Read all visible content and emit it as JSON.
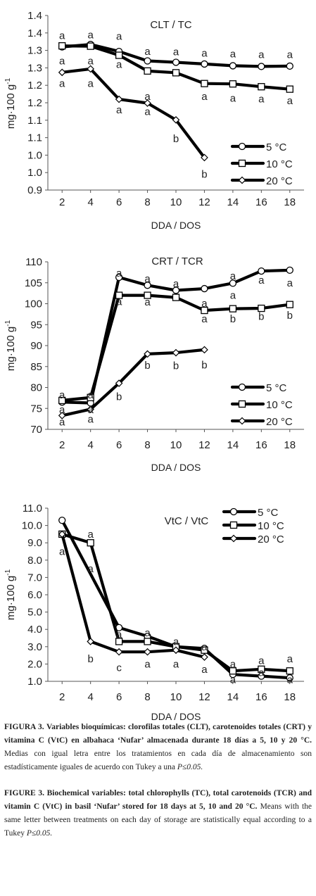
{
  "chart_data": [
    {
      "type": "line",
      "title": "CLT / TC",
      "xlabel": "DDA / DOS",
      "ylabel": "mg·100 g-1",
      "ylabel_main": "mg·100 g",
      "ylabel_sup": "-1",
      "x": [
        2,
        4,
        6,
        8,
        10,
        12,
        14,
        16,
        18
      ],
      "ylim": [
        0.9,
        1.4
      ],
      "yticks": [
        "0.9",
        "1.0",
        "1.0",
        "1.1",
        "1.1",
        "1.2",
        "1.2",
        "1.3",
        "1.3",
        "1.4",
        "1.4"
      ],
      "legend_position": "lower-right",
      "series": [
        {
          "name": "5 °C",
          "marker": "circle",
          "values": [
            1.31,
            1.317,
            1.297,
            1.27,
            1.266,
            1.261,
            1.256,
            1.254,
            1.255
          ]
        },
        {
          "name": "10 °C",
          "marker": "square",
          "values": [
            1.313,
            1.312,
            1.286,
            1.241,
            1.236,
            1.205,
            1.204,
            1.196,
            1.189
          ]
        },
        {
          "name": "20 °C",
          "marker": "diamond",
          "values": [
            1.237,
            1.247,
            1.16,
            1.149,
            1.101,
            0.993,
            null,
            null,
            null
          ]
        }
      ],
      "letters": [
        {
          "x": 2,
          "y": 1.343,
          "t": "a"
        },
        {
          "x": 4,
          "y": 1.345,
          "t": "a"
        },
        {
          "x": 6,
          "y": 1.341,
          "t": "a"
        },
        {
          "x": 8,
          "y": 1.297,
          "t": "a"
        },
        {
          "x": 10,
          "y": 1.296,
          "t": "a"
        },
        {
          "x": 12,
          "y": 1.292,
          "t": "a"
        },
        {
          "x": 14,
          "y": 1.29,
          "t": "a"
        },
        {
          "x": 16,
          "y": 1.288,
          "t": "a"
        },
        {
          "x": 18,
          "y": 1.288,
          "t": "a"
        },
        {
          "x": 2,
          "y": 1.27,
          "t": "a"
        },
        {
          "x": 4,
          "y": 1.27,
          "t": "a"
        },
        {
          "x": 6,
          "y": 1.26,
          "t": "a"
        },
        {
          "x": 2,
          "y": 1.205,
          "t": "a"
        },
        {
          "x": 4,
          "y": 1.205,
          "t": "a"
        },
        {
          "x": 6,
          "y": 1.13,
          "t": "a"
        },
        {
          "x": 8,
          "y": 1.125,
          "t": "a"
        },
        {
          "x": 10,
          "y": 1.047,
          "t": "b"
        },
        {
          "x": 8,
          "y": 1.168,
          "t": "a"
        },
        {
          "x": 12,
          "y": 1.168,
          "t": "a"
        },
        {
          "x": 14,
          "y": 1.163,
          "t": "a"
        },
        {
          "x": 16,
          "y": 1.161,
          "t": "a"
        },
        {
          "x": 18,
          "y": 1.156,
          "t": "a"
        },
        {
          "x": 12,
          "y": 0.945,
          "t": "b"
        }
      ]
    },
    {
      "type": "line",
      "title": "CRT / TCR",
      "xlabel": "DDA / DOS",
      "ylabel": "mg·100 g-1",
      "ylabel_main": "mg·100 g",
      "ylabel_sup": "-1",
      "x": [
        2,
        4,
        6,
        8,
        10,
        12,
        14,
        16,
        18
      ],
      "ylim": [
        70,
        110
      ],
      "yticks": [
        "70",
        "75",
        "80",
        "85",
        "90",
        "95",
        "100",
        "105",
        "110"
      ],
      "legend_position": "lower-right",
      "series": [
        {
          "name": "5 °C",
          "marker": "circle",
          "values": [
            76.5,
            76.3,
            106.3,
            104.4,
            103.2,
            103.6,
            104.9,
            107.8,
            108.0
          ]
        },
        {
          "name": "10 °C",
          "marker": "square",
          "values": [
            76.9,
            77.6,
            102.0,
            102.0,
            101.5,
            98.4,
            98.8,
            98.9,
            99.8
          ]
        },
        {
          "name": "20 °C",
          "marker": "diamond",
          "values": [
            73.3,
            74.8,
            81.0,
            88.0,
            88.3,
            89.0,
            null,
            null,
            null
          ]
        }
      ],
      "letters": [
        {
          "x": 2,
          "y": 78.2,
          "t": "a"
        },
        {
          "x": 4,
          "y": 78.2,
          "t": "a"
        },
        {
          "x": 6,
          "y": 107.3,
          "t": "a"
        },
        {
          "x": 8,
          "y": 106.0,
          "t": "a"
        },
        {
          "x": 10,
          "y": 104.8,
          "t": "a"
        },
        {
          "x": 14,
          "y": 106.6,
          "t": "a"
        },
        {
          "x": 16,
          "y": 105.6,
          "t": "a"
        },
        {
          "x": 18,
          "y": 105.0,
          "t": "a"
        },
        {
          "x": 6,
          "y": 100.5,
          "t": "a"
        },
        {
          "x": 8,
          "y": 100.4,
          "t": "a"
        },
        {
          "x": 12,
          "y": 100.1,
          "t": "a"
        },
        {
          "x": 14,
          "y": 102.0,
          "t": "a"
        },
        {
          "x": 12,
          "y": 96.4,
          "t": "a"
        },
        {
          "x": 14,
          "y": 96.4,
          "t": "b"
        },
        {
          "x": 16,
          "y": 97.0,
          "t": "b"
        },
        {
          "x": 18,
          "y": 97.2,
          "t": "b"
        },
        {
          "x": 2,
          "y": 74.7,
          "t": "a"
        },
        {
          "x": 4,
          "y": 74.7,
          "t": "a"
        },
        {
          "x": 2,
          "y": 71.8,
          "t": "a"
        },
        {
          "x": 4,
          "y": 72.4,
          "t": "a"
        },
        {
          "x": 6,
          "y": 77.8,
          "t": "b"
        },
        {
          "x": 8,
          "y": 85.3,
          "t": "b"
        },
        {
          "x": 10,
          "y": 85.2,
          "t": "b"
        },
        {
          "x": 12,
          "y": 85.4,
          "t": "b"
        }
      ]
    },
    {
      "type": "line",
      "title": "VtC / VtC",
      "xlabel": "DDA / DOS",
      "ylabel": "mg·100 g-1",
      "ylabel_main": "mg·100 g",
      "ylabel_sup": "-1",
      "x": [
        2,
        4,
        6,
        8,
        10,
        12,
        14,
        16,
        18
      ],
      "ylim": [
        1.0,
        11.0
      ],
      "yticks": [
        "1.0",
        "2.0",
        "3.0",
        "4.0",
        "5.0",
        "6.0",
        "7.0",
        "8.0",
        "9.0",
        "10.0",
        "11.0"
      ],
      "legend_position": "top-right",
      "series": [
        {
          "name": "5 °C",
          "marker": "circle",
          "values": [
            10.3,
            null,
            4.1,
            3.6,
            3.0,
            2.9,
            1.4,
            1.3,
            1.2
          ]
        },
        {
          "name": "10 °C",
          "marker": "square",
          "values": [
            9.5,
            9.0,
            3.3,
            3.3,
            3.0,
            2.8,
            1.6,
            1.7,
            1.6
          ]
        },
        {
          "name": "20 °C",
          "marker": "diamond",
          "values": [
            9.5,
            3.3,
            2.7,
            2.7,
            2.8,
            2.4,
            null,
            null,
            null
          ]
        }
      ],
      "letters": [
        {
          "x": 2,
          "y": 8.5,
          "t": "a"
        },
        {
          "x": 4,
          "y": 9.5,
          "t": "a"
        },
        {
          "x": 4,
          "y": 7.5,
          "t": "a"
        },
        {
          "x": 4,
          "y": 2.3,
          "t": "b"
        },
        {
          "x": 6,
          "y": 3.7,
          "t": "a"
        },
        {
          "x": 6,
          "y": 1.8,
          "t": "c"
        },
        {
          "x": 8,
          "y": 3.8,
          "t": "a"
        },
        {
          "x": 8,
          "y": 2.0,
          "t": "a"
        },
        {
          "x": 10,
          "y": 3.3,
          "t": "a"
        },
        {
          "x": 10,
          "y": 2.0,
          "t": "a"
        },
        {
          "x": 12,
          "y": 3.0,
          "t": "a"
        },
        {
          "x": 12,
          "y": 1.7,
          "t": "a"
        },
        {
          "x": 14,
          "y": 2.0,
          "t": "a"
        },
        {
          "x": 14,
          "y": 1.1,
          "t": "a"
        },
        {
          "x": 16,
          "y": 2.2,
          "t": "a"
        },
        {
          "x": 16,
          "y": 1.5,
          "t": "a"
        },
        {
          "x": 18,
          "y": 2.3,
          "t": "a"
        },
        {
          "x": 18,
          "y": 1.1,
          "t": "a"
        }
      ]
    }
  ],
  "captions": {
    "es": {
      "label": "FIGURA 3.",
      "bold": "Variables bioquímicas: clorofilas totales (CLT), carotenoides totales (CRT) y vitamina C (VtC) en albahaca ‘Nufar’ almacenada durante 18 días a 5, 10 y 20 °C.",
      "text": " Medias con igual letra entre los tratamientos en cada día de almacenamiento son estadísticamente iguales de acuerdo con Tukey a una ",
      "p": "P≤0.05."
    },
    "en": {
      "label": "FIGURE 3.",
      "bold": "Biochemical variables: total chlorophylls (TC), total carotenoids (TCR) and vitamin C (VtC) in basil ‘Nufar’ stored for 18 days at 5, 10 and 20 °C.",
      "text": " Means with the same letter between treatments on each day of storage are statistically equal according to a Tukey ",
      "p": "P≤0.05."
    }
  }
}
